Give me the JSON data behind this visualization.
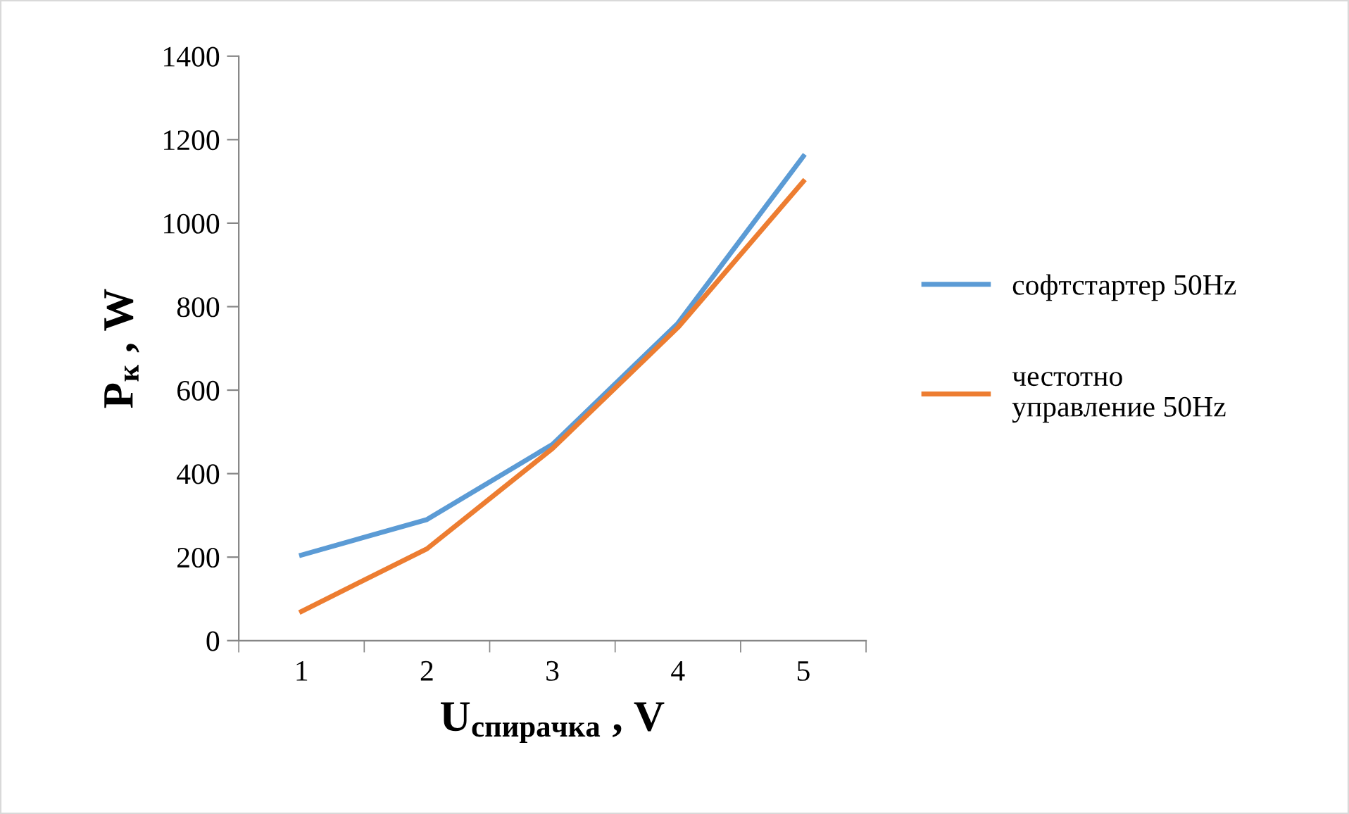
{
  "chart_data": {
    "type": "line",
    "xlabel": "U$_{спирачка}$ , V",
    "ylabel": "P$_{к}$ , W",
    "categories": [
      "1",
      "2",
      "3",
      "4",
      "5"
    ],
    "series": [
      {
        "name": "софтстартер 50Hz",
        "color": "#5b9bd5",
        "values": [
          205,
          290,
          470,
          760,
          1160
        ]
      },
      {
        "name": "честотно управление 50Hz",
        "color": "#ed7d31",
        "values": [
          70,
          220,
          460,
          750,
          1100
        ]
      }
    ],
    "ylim": [
      0,
      1400
    ],
    "yticks": [
      0,
      200,
      400,
      600,
      800,
      1000,
      1200,
      1400
    ],
    "grid": false,
    "legend": "right",
    "marker": "none",
    "line_style": "solid"
  }
}
